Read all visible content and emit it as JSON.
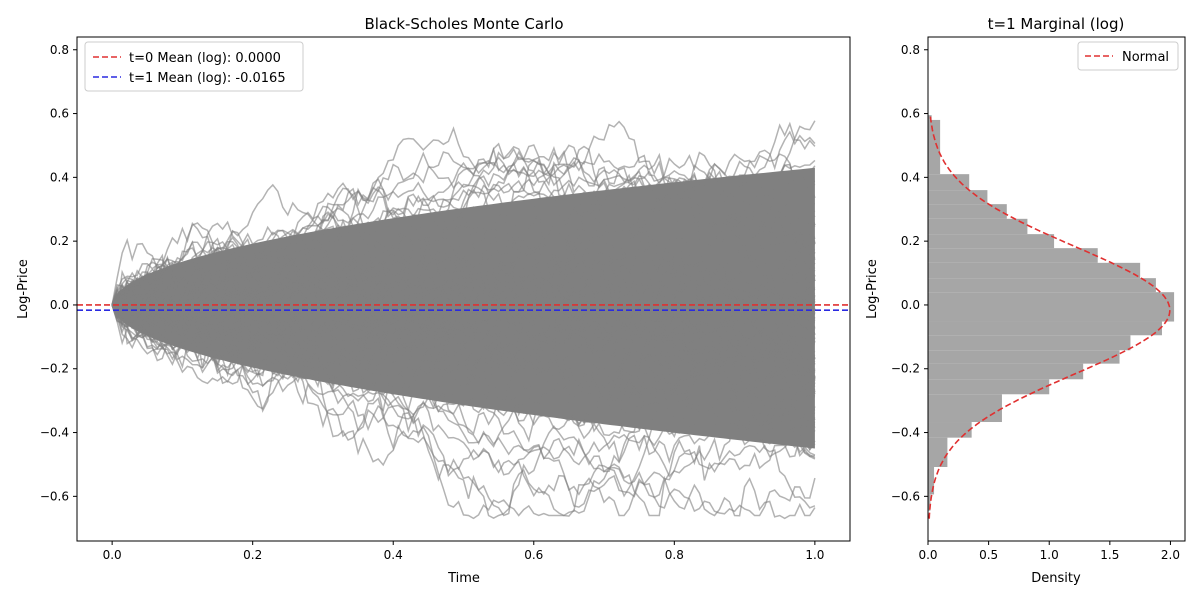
{
  "chart_data": [
    {
      "type": "line",
      "title": "Black-Scholes Monte Carlo",
      "xlabel": "Time",
      "ylabel": "Log-Price",
      "xlim": [
        -0.05,
        1.05
      ],
      "ylim": [
        -0.74,
        0.84
      ],
      "xticks": [
        "0.0",
        "0.2",
        "0.4",
        "0.6",
        "0.8",
        "1.0"
      ],
      "xtick_values": [
        0.0,
        0.2,
        0.4,
        0.6,
        0.8,
        1.0
      ],
      "yticks": [
        "−0.6",
        "−0.4",
        "−0.2",
        "0.0",
        "0.2",
        "0.4",
        "0.6",
        "0.8"
      ],
      "ytick_values": [
        -0.6,
        -0.4,
        -0.2,
        0.0,
        0.2,
        0.4,
        0.6,
        0.8
      ],
      "grid": false,
      "legend_position": "top-left",
      "paths": {
        "color": "#808080",
        "opacity": 0.6,
        "start": 0.0,
        "time_range": [
          0.0,
          1.0
        ],
        "std_at_t1": 0.2,
        "envelope_at_t1": [
          -0.67,
          0.73
        ]
      },
      "series": [
        {
          "name": "t=0 Mean (log): 0.0000",
          "color": "#e03030",
          "style": "dashed",
          "y": 0.0
        },
        {
          "name": "t=1 Mean (log): -0.0165",
          "color": "#2a2ae0",
          "style": "dashed",
          "y": -0.0165
        }
      ]
    },
    {
      "type": "bar",
      "orientation": "horizontal",
      "title": "t=1 Marginal (log)",
      "xlabel": "Density",
      "ylabel": "Log-Price",
      "xlim": [
        0.0,
        2.12
      ],
      "ylim": [
        -0.74,
        0.84
      ],
      "xticks": [
        "0.0",
        "0.5",
        "1.0",
        "1.5",
        "2.0"
      ],
      "xtick_values": [
        0.0,
        0.5,
        1.0,
        1.5,
        2.0
      ],
      "yticks": [
        "−0.6",
        "−0.4",
        "−0.2",
        "0.0",
        "0.2",
        "0.4",
        "0.6",
        "0.8"
      ],
      "ytick_values": [
        -0.6,
        -0.4,
        -0.2,
        0.0,
        0.2,
        0.4,
        0.6,
        0.8
      ],
      "grid": false,
      "legend_position": "top-right",
      "histogram": {
        "color": "#a6a6a6",
        "bins": [
          [
            -0.645,
            -0.594,
            0.02
          ],
          [
            -0.594,
            -0.508,
            0.05
          ],
          [
            -0.508,
            -0.416,
            0.16
          ],
          [
            -0.416,
            -0.367,
            0.36
          ],
          [
            -0.367,
            -0.28,
            0.61
          ],
          [
            -0.28,
            -0.233,
            1.0
          ],
          [
            -0.233,
            -0.184,
            1.28
          ],
          [
            -0.184,
            -0.142,
            1.58
          ],
          [
            -0.142,
            -0.095,
            1.67
          ],
          [
            -0.095,
            -0.052,
            1.93
          ],
          [
            -0.052,
            0.04,
            2.03
          ],
          [
            0.04,
            0.084,
            1.88
          ],
          [
            0.084,
            0.132,
            1.75
          ],
          [
            0.132,
            0.178,
            1.4
          ],
          [
            0.178,
            0.222,
            1.04
          ],
          [
            0.222,
            0.27,
            0.82
          ],
          [
            0.27,
            0.316,
            0.65
          ],
          [
            0.316,
            0.36,
            0.49
          ],
          [
            0.36,
            0.41,
            0.34
          ],
          [
            0.41,
            0.58,
            0.1
          ],
          [
            0.58,
            0.595,
            0.03
          ]
        ]
      },
      "series": [
        {
          "name": "Normal",
          "color": "#e03030",
          "style": "dashed",
          "mean": -0.0165,
          "std": 0.2
        }
      ]
    }
  ]
}
